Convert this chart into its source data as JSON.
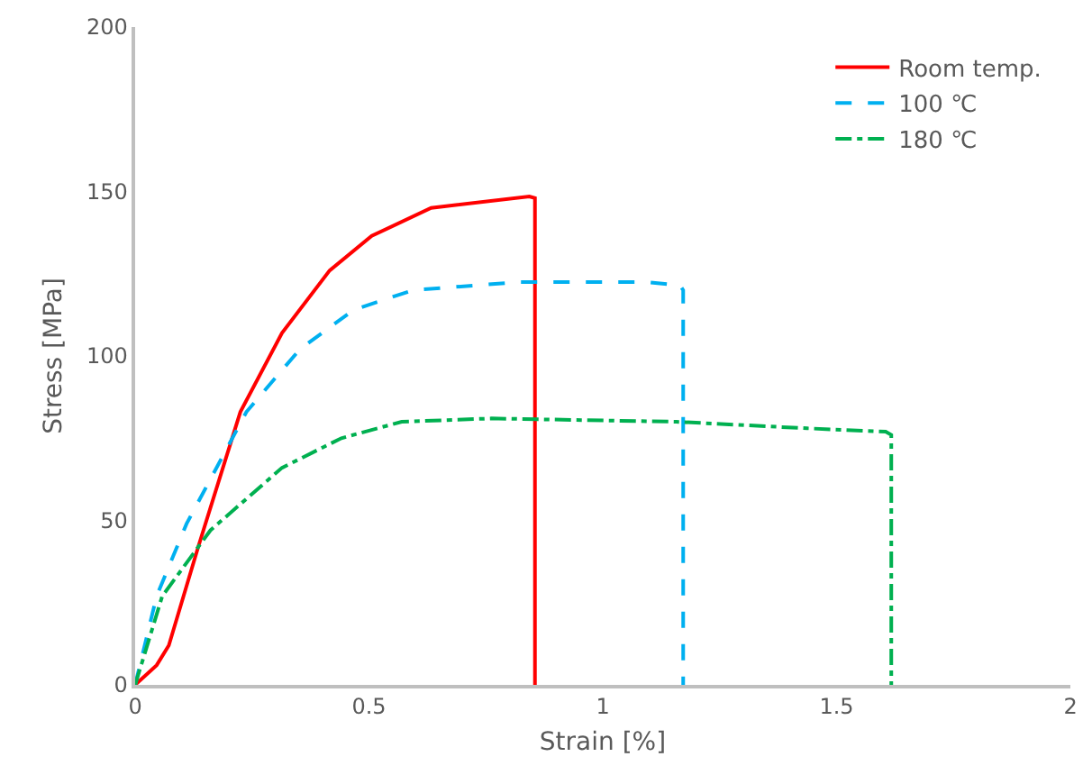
{
  "chart_data": {
    "type": "line",
    "xlabel": "Strain [%]",
    "ylabel": "Stress [MPa]",
    "xlim": [
      0,
      2
    ],
    "xticks": [
      0,
      0.5,
      1,
      1.5,
      2
    ],
    "ylim": [
      0,
      200
    ],
    "yticks": [
      0,
      50,
      100,
      150,
      200
    ],
    "legend": "top right",
    "marker": "none",
    "series": [
      {
        "name": "Room temp.",
        "color": "#ff0000",
        "line_style": "solid",
        "x": [
          0,
          0.046,
          0.072,
          0.135,
          0.225,
          0.314,
          0.416,
          0.506,
          0.633,
          0.843,
          0.855,
          0.855
        ],
        "values": [
          0,
          6,
          12,
          42,
          83,
          107,
          126,
          136.5,
          145,
          148.5,
          148,
          0
        ]
      },
      {
        "name": "100 ℃",
        "color": "#00b0f0",
        "line_style": "dashed",
        "x": [
          0,
          0.046,
          0.11,
          0.238,
          0.352,
          0.467,
          0.594,
          0.825,
          1.09,
          1.165,
          1.172,
          1.172
        ],
        "values": [
          0,
          27,
          49,
          83,
          102,
          114,
          120,
          122.5,
          122.5,
          121.5,
          120,
          0
        ]
      },
      {
        "name": "180 ℃",
        "color": "#00b050",
        "line_style": "dashdot",
        "x": [
          0,
          0.058,
          0.161,
          0.314,
          0.441,
          0.57,
          0.762,
          1.157,
          1.437,
          1.605,
          1.617,
          1.617
        ],
        "values": [
          0,
          27,
          47,
          66,
          75,
          80,
          81,
          80,
          78,
          77,
          76,
          0
        ]
      }
    ]
  }
}
